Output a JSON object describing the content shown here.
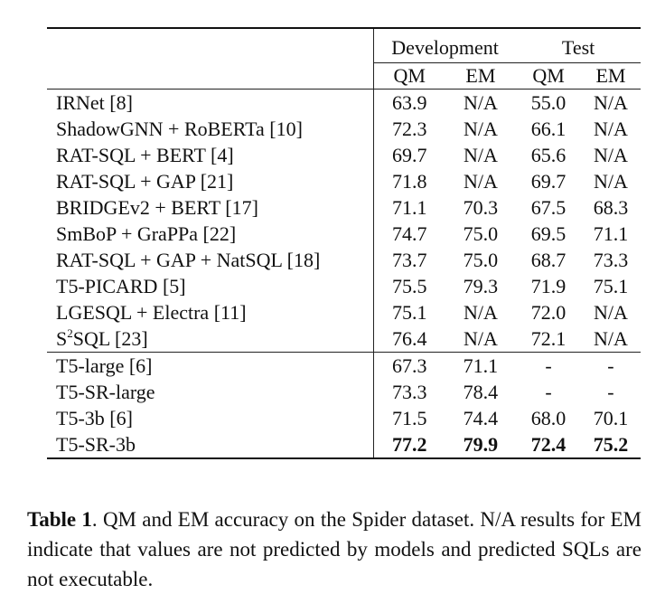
{
  "table": {
    "group_headers": [
      "Development",
      "Test"
    ],
    "sub_headers": [
      "QM",
      "EM",
      "QM",
      "EM"
    ],
    "rows": [
      {
        "model": "IRNet [8]",
        "values": [
          "63.9",
          "N/A",
          "55.0",
          "N/A"
        ]
      },
      {
        "model": "ShadowGNN + RoBERTa [10]",
        "values": [
          "72.3",
          "N/A",
          "66.1",
          "N/A"
        ]
      },
      {
        "model": "RAT-SQL + BERT [4]",
        "values": [
          "69.7",
          "N/A",
          "65.6",
          "N/A"
        ]
      },
      {
        "model": "RAT-SQL + GAP [21]",
        "values": [
          "71.8",
          "N/A",
          "69.7",
          "N/A"
        ]
      },
      {
        "model": "BRIDGEv2 + BERT [17]",
        "values": [
          "71.1",
          "70.3",
          "67.5",
          "68.3"
        ]
      },
      {
        "model": "SmBoP + GraPPa [22]",
        "values": [
          "74.7",
          "75.0",
          "69.5",
          "71.1"
        ]
      },
      {
        "model": "RAT-SQL + GAP + NatSQL [18]",
        "values": [
          "73.7",
          "75.0",
          "68.7",
          "73.3"
        ]
      },
      {
        "model": "T5-PICARD [5]",
        "values": [
          "75.5",
          "79.3",
          "71.9",
          "75.1"
        ]
      },
      {
        "model": "LGESQL + Electra [11]",
        "values": [
          "75.1",
          "N/A",
          "72.0",
          "N/A"
        ]
      },
      {
        "model": "SQL [23]",
        "model_prefix": "S",
        "model_sup": "2",
        "values": [
          "76.4",
          "N/A",
          "72.1",
          "N/A"
        ]
      },
      {
        "model": "T5-large [6]",
        "values": [
          "67.3",
          "71.1",
          "-",
          "-"
        ]
      },
      {
        "model": "T5-SR-large",
        "values": [
          "73.3",
          "78.4",
          "-",
          "-"
        ]
      },
      {
        "model": "T5-3b [6]",
        "values": [
          "71.5",
          "74.4",
          "68.0",
          "70.1"
        ]
      },
      {
        "model": "T5-SR-3b",
        "values": [
          "77.2",
          "79.9",
          "72.4",
          "75.2"
        ],
        "bold": true
      }
    ]
  },
  "caption": {
    "label": "Table 1",
    "text": ". QM and EM accuracy on the Spider dataset. N/A results for EM indicate that values are not predicted by models and predicted SQLs are not executable."
  }
}
